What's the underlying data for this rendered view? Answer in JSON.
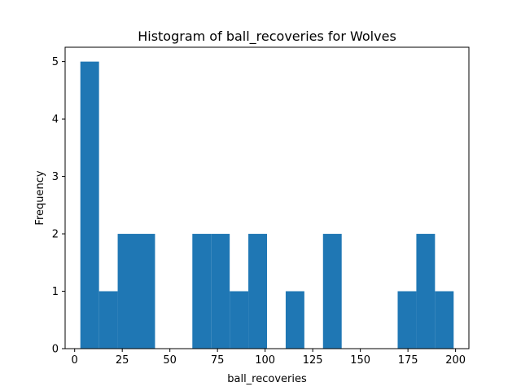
{
  "chart_data": {
    "type": "bar",
    "title": "Histogram of ball_recoveries for Wolves",
    "xlabel": "ball_recoveries",
    "ylabel": "Frequency",
    "bins": {
      "start": 3,
      "width": 9.8,
      "counts": [
        5,
        1,
        2,
        2,
        0,
        0,
        2,
        2,
        1,
        2,
        0,
        1,
        0,
        2,
        0,
        0,
        0,
        1,
        2,
        1
      ]
    },
    "xlim": [
      -5,
      207
    ],
    "ylim": [
      0,
      5.25
    ],
    "xticks": [
      0,
      25,
      50,
      75,
      100,
      125,
      150,
      175,
      200
    ],
    "yticks": [
      0,
      1,
      2,
      3,
      4,
      5
    ],
    "bar_color": "#1f77b4",
    "grid": false,
    "legend": "none"
  }
}
